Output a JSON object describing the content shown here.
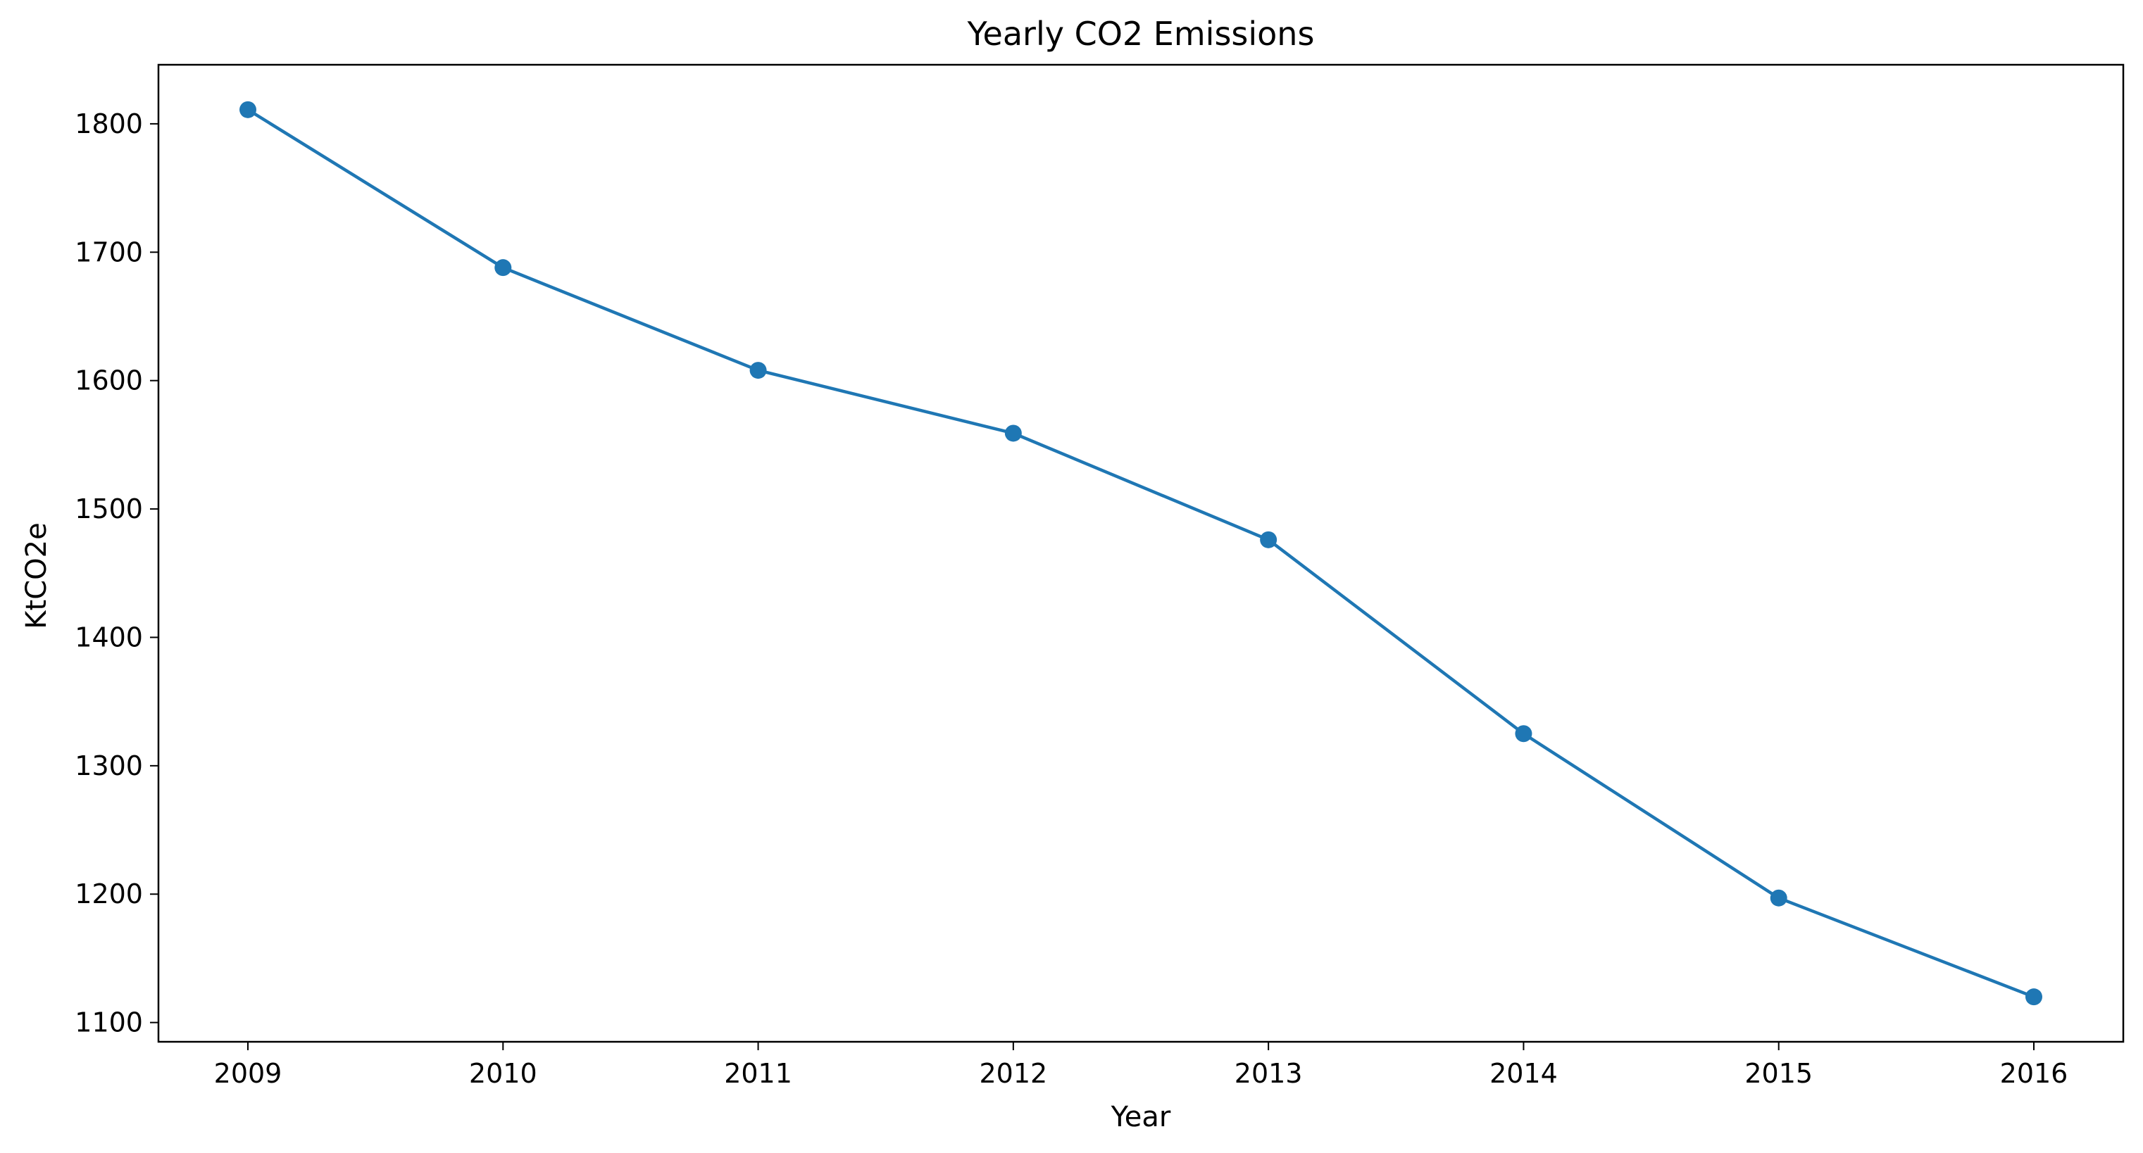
{
  "chart_data": {
    "type": "line",
    "title": "Yearly CO2 Emissions",
    "xlabel": "Year",
    "ylabel": "KtCO2e",
    "categories": [
      "2009",
      "2010",
      "2011",
      "2012",
      "2013",
      "2014",
      "2015",
      "2016"
    ],
    "series": [
      {
        "values": [
          1811,
          1688,
          1608,
          1559,
          1476,
          1325,
          1197,
          1120
        ],
        "color": "#1f77b4",
        "marker": "circle"
      }
    ],
    "yticks": [
      1100,
      1200,
      1300,
      1400,
      1500,
      1600,
      1700,
      1800
    ],
    "ylim": [
      1085,
      1846
    ],
    "grid": false,
    "legend": "none"
  }
}
